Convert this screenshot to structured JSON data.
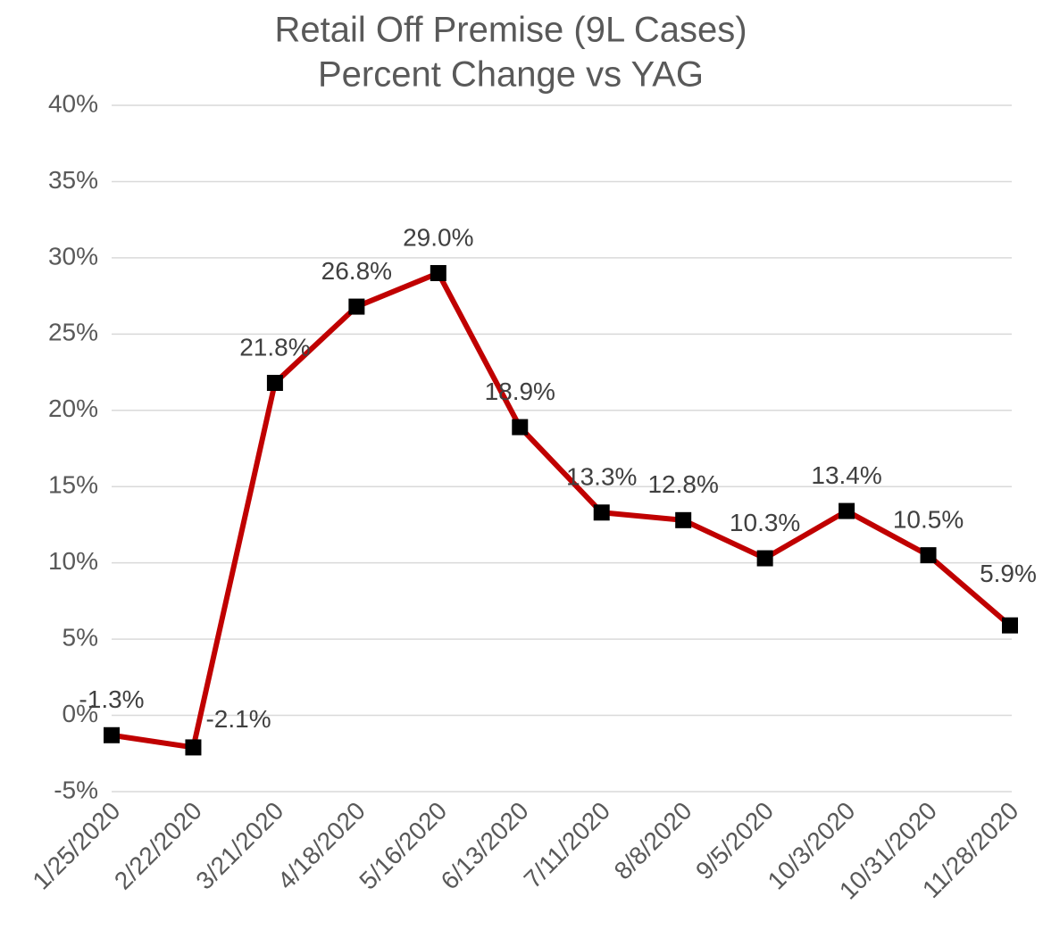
{
  "chart_data": {
    "type": "line",
    "title": [
      "Retail Off Premise (9L Cases)",
      "Percent Change vs YAG"
    ],
    "categories": [
      "1/25/2020",
      "2/22/2020",
      "3/21/2020",
      "4/18/2020",
      "5/16/2020",
      "6/13/2020",
      "7/11/2020",
      "8/8/2020",
      "9/5/2020",
      "10/3/2020",
      "10/31/2020",
      "11/28/2020"
    ],
    "series": [
      {
        "color": "#c00000",
        "marker_color": "#000000",
        "values": [
          -1.3,
          -2.1,
          21.8,
          26.8,
          29.0,
          18.9,
          13.3,
          12.8,
          10.3,
          13.4,
          10.5,
          5.9
        ],
        "value_labels": [
          "-1.3%",
          "-2.1%",
          "21.8%",
          "26.8%",
          "29.0%",
          "18.9%",
          "13.3%",
          "12.8%",
          "10.3%",
          "13.4%",
          "10.5%",
          "5.9%"
        ]
      }
    ],
    "ylim": [
      -5,
      40
    ],
    "yticks": [
      {
        "value": -5,
        "label": "-5%"
      },
      {
        "value": 0,
        "label": "0%"
      },
      {
        "value": 5,
        "label": "5%"
      },
      {
        "value": 10,
        "label": "10%"
      },
      {
        "value": 15,
        "label": "15%"
      },
      {
        "value": 20,
        "label": "20%"
      },
      {
        "value": 25,
        "label": "25%"
      },
      {
        "value": 30,
        "label": "30%"
      },
      {
        "value": 35,
        "label": "35%"
      },
      {
        "value": 40,
        "label": "40%"
      }
    ],
    "grid": true
  }
}
